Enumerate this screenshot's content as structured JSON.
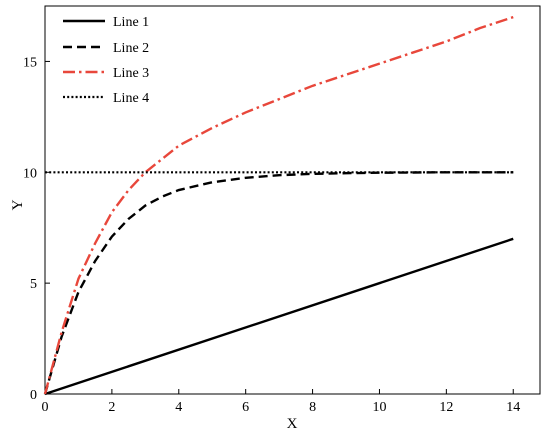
{
  "chart_data": {
    "type": "line",
    "title": "",
    "xlabel": "X",
    "ylabel": "Y",
    "xlim": [
      0,
      14.8
    ],
    "ylim": [
      0,
      17.5
    ],
    "x_ticks": [
      0,
      2,
      4,
      6,
      8,
      10,
      12,
      14
    ],
    "y_ticks": [
      0,
      5,
      10,
      15
    ],
    "grid": false,
    "legend_position": "top-left",
    "series": [
      {
        "name": "Line 1",
        "color": "#000000",
        "style": "solid",
        "x": [
          0,
          14
        ],
        "y": [
          0,
          7
        ]
      },
      {
        "name": "Line 2",
        "color": "#000000",
        "style": "dashed",
        "x": [
          0,
          0.5,
          1,
          1.5,
          2,
          2.5,
          3,
          3.5,
          4,
          5,
          6,
          7,
          8,
          9,
          10,
          12,
          14
        ],
        "y": [
          0,
          2.6,
          4.6,
          6.0,
          7.1,
          7.9,
          8.5,
          8.9,
          9.2,
          9.55,
          9.75,
          9.87,
          9.93,
          9.96,
          9.98,
          10.0,
          10.0
        ]
      },
      {
        "name": "Line 3",
        "color": "#e8473b",
        "style": "dashdot",
        "x": [
          0,
          0.5,
          1,
          1.5,
          2,
          2.5,
          3,
          3.5,
          4,
          5,
          6,
          7,
          8,
          9,
          10,
          11,
          12,
          13,
          14
        ],
        "y": [
          0,
          2.8,
          5.2,
          6.8,
          8.2,
          9.2,
          10.0,
          10.6,
          11.2,
          12.0,
          12.7,
          13.3,
          13.9,
          14.4,
          14.9,
          15.4,
          15.9,
          16.5,
          17.0
        ]
      },
      {
        "name": "Line 4",
        "color": "#000000",
        "style": "dotted",
        "x": [
          0,
          14
        ],
        "y": [
          10,
          10
        ]
      }
    ]
  }
}
